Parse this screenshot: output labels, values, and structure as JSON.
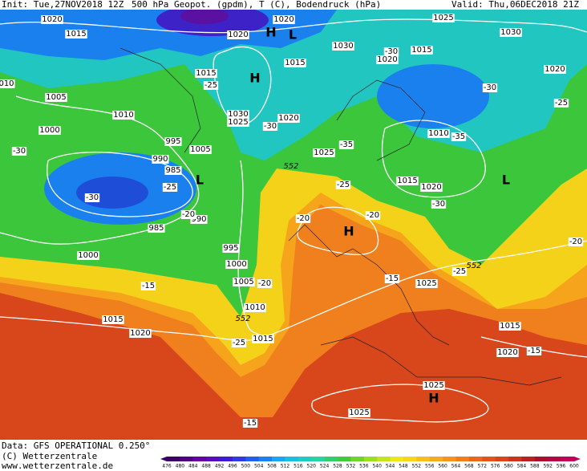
{
  "header": {
    "init": "Init: Tue,27NOV2018 12Z",
    "title": "500 hPa Geopot. (gpdm), T (C), Bodendruck (hPa)",
    "valid": "Valid: Thu,06DEC2018 21Z"
  },
  "map": {
    "isobar_labels": [
      "1020",
      "1015",
      "1020",
      "1020",
      "1025",
      "1030",
      "1030",
      "1020",
      "1015",
      "1015",
      "1015",
      "1020",
      "1005",
      "1010",
      "1030",
      "1025",
      "1020",
      "1000",
      "995",
      "1005",
      "1010",
      "990",
      "985",
      "1025",
      "1015",
      "1020",
      "990",
      "985",
      "995",
      "1000",
      "1000",
      "1005",
      "1025",
      "1010",
      "1015",
      "1020",
      "1015",
      "1015",
      "1020",
      "1025",
      "1025",
      "010"
    ],
    "temperature_labels": [
      "-30",
      "-25",
      "-30",
      "-25",
      "-30",
      "-35",
      "-35",
      "-30",
      "-25",
      "-30",
      "-20",
      "-25",
      "-20",
      "-20",
      "-30",
      "-15",
      "-20",
      "-25",
      "-15",
      "-20",
      "-25",
      "-15",
      "-15"
    ],
    "height_labels": [
      "552",
      "552",
      "552"
    ],
    "pressure_centers": [
      "H",
      "L",
      "H",
      "L",
      "H",
      "L",
      "H"
    ]
  },
  "footer": {
    "data": "Data: GFS OPERATIONAL 0.250°",
    "copyright": "(C) Wetterzentrale",
    "url": "www.wetterzentrale.de"
  },
  "colorbar": {
    "ticks": [
      476,
      480,
      484,
      488,
      492,
      496,
      500,
      504,
      508,
      512,
      516,
      520,
      524,
      528,
      532,
      536,
      540,
      544,
      548,
      552,
      556,
      560,
      564,
      568,
      572,
      576,
      580,
      584,
      588,
      592,
      596,
      600
    ],
    "palette": [
      "#3c0064",
      "#6a00a8",
      "#3a1ee0",
      "#1a6ff0",
      "#18b8f0",
      "#20d6b0",
      "#3cc83c",
      "#9ae020",
      "#f5e81a",
      "#f7b81c",
      "#f58a1c",
      "#e85a18",
      "#d23a1a",
      "#a8102a",
      "#c0005a"
    ]
  }
}
